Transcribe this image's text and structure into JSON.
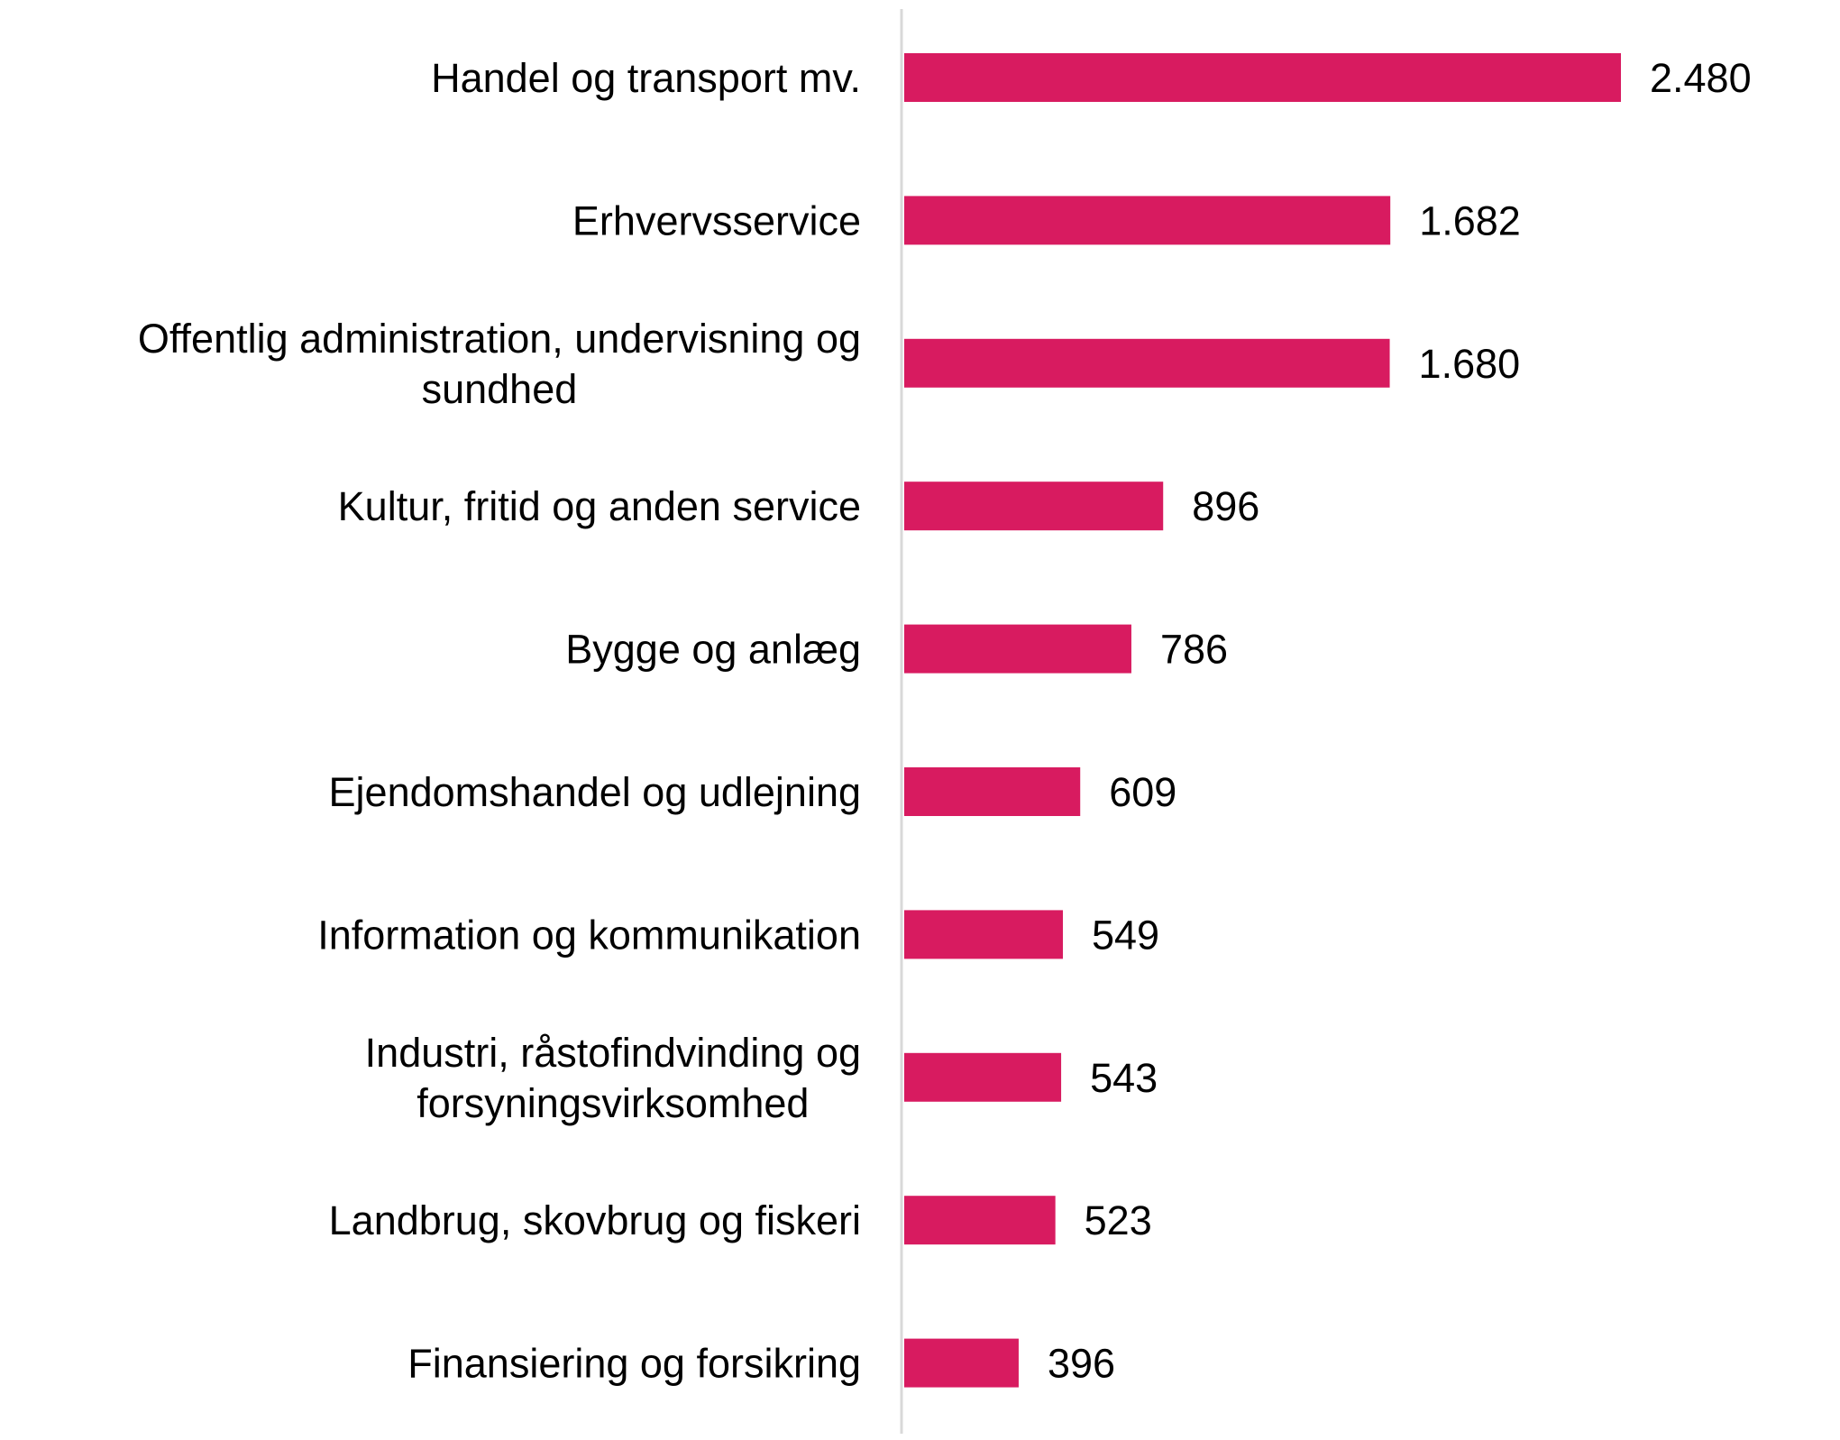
{
  "chart_data": {
    "type": "bar",
    "orientation": "horizontal",
    "title": "",
    "xlabel": "",
    "ylabel": "",
    "categories": [
      [
        "Handel og transport mv."
      ],
      [
        "Erhvervsservice"
      ],
      [
        "Offentlig administration, undervisning og",
        "sundhed"
      ],
      [
        "Kultur, fritid og anden service"
      ],
      [
        "Bygge og anlæg"
      ],
      [
        "Ejendomshandel og udlejning"
      ],
      [
        "Information og kommunikation"
      ],
      [
        "Industri, råstofindvinding og",
        "forsyningsvirksomhed"
      ],
      [
        "Landbrug, skovbrug og fiskeri"
      ],
      [
        "Finansiering og forsikring"
      ]
    ],
    "values": [
      2480,
      1682,
      1680,
      896,
      786,
      609,
      549,
      543,
      523,
      396
    ],
    "value_labels": [
      "2.480",
      "1.682",
      "1.680",
      "896",
      "786",
      "609",
      "549",
      "543",
      "523",
      "396"
    ],
    "xlim": [
      0,
      2480
    ],
    "grid": false,
    "bar_color": "#d81b60",
    "axis_color": "#d9d9d9"
  }
}
